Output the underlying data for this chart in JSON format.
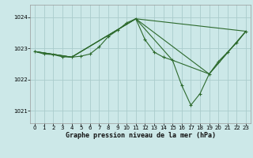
{
  "title": "Graphe pression niveau de la mer (hPa)",
  "background_color": "#cce8e8",
  "grid_color": "#aacccc",
  "line_color": "#2d6a2d",
  "marker_color": "#2d6a2d",
  "ylim": [
    1020.6,
    1024.4
  ],
  "yticks": [
    1021,
    1022,
    1023,
    1024
  ],
  "xlim": [
    -0.5,
    23.5
  ],
  "xticks": [
    0,
    1,
    2,
    3,
    4,
    5,
    6,
    7,
    8,
    9,
    10,
    11,
    12,
    13,
    14,
    15,
    16,
    17,
    18,
    19,
    20,
    21,
    22,
    23
  ],
  "line_main": {
    "x": [
      0,
      1,
      2,
      3,
      4,
      5,
      6,
      7,
      8,
      9,
      10,
      11,
      12,
      13,
      14,
      15,
      16,
      17,
      18,
      19,
      20,
      21,
      22,
      23
    ],
    "y": [
      1022.9,
      1022.82,
      1022.8,
      1022.73,
      1022.72,
      1022.75,
      1022.82,
      1023.05,
      1023.38,
      1023.58,
      1023.82,
      1023.95,
      1023.28,
      1022.88,
      1022.72,
      1022.62,
      1021.82,
      1021.18,
      1021.55,
      1022.18,
      1022.58,
      1022.88,
      1023.18,
      1023.55
    ]
  },
  "extra_lines": [
    {
      "x": [
        0,
        4,
        11,
        23
      ],
      "y": [
        1022.9,
        1022.72,
        1023.95,
        1023.55
      ]
    },
    {
      "x": [
        0,
        4,
        11,
        15,
        19,
        23
      ],
      "y": [
        1022.9,
        1022.72,
        1023.95,
        1022.62,
        1022.18,
        1023.55
      ]
    },
    {
      "x": [
        0,
        4,
        11,
        19,
        23
      ],
      "y": [
        1022.9,
        1022.72,
        1023.95,
        1022.18,
        1023.55
      ]
    }
  ],
  "title_fontsize": 6,
  "tick_fontsize": 5,
  "figsize": [
    3.2,
    2.0
  ],
  "dpi": 100
}
